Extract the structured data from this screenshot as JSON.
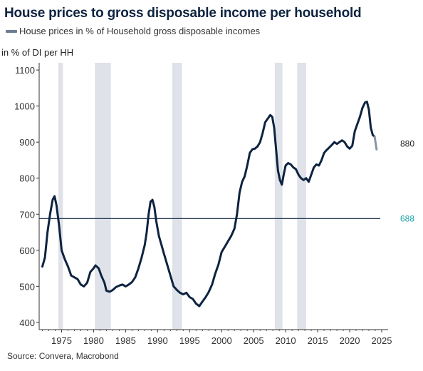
{
  "title": "House prices to gross disposable income per household",
  "legend": {
    "label": "House prices in % of Household gross disposable incomes"
  },
  "source": "Source: Convera, Macrobond",
  "colors": {
    "line": "#0d2340",
    "tail": "#8795a6",
    "recession": "#dfe2e8",
    "reference": "#0d2340",
    "reference_label": "#1aa3a6",
    "last_label": "#222222"
  },
  "chart_data": {
    "type": "line",
    "title": "House prices to gross disposable income per household",
    "ylabel": "in % of DI per HH",
    "xlabel": "",
    "xlim": [
      1971.5,
      2026
    ],
    "ylim": [
      380,
      1120
    ],
    "x_ticks": [
      1975,
      1980,
      1985,
      1990,
      1995,
      2000,
      2005,
      2010,
      2015,
      2020,
      2025
    ],
    "y_ticks": [
      400,
      500,
      600,
      700,
      800,
      900,
      1000,
      1100
    ],
    "grid": false,
    "legend_position": "top-left",
    "recessions": [
      [
        1974.5,
        1975.2
      ],
      [
        1980.2,
        1982.7
      ],
      [
        1992.3,
        1993.8
      ],
      [
        2008.3,
        2009.5
      ],
      [
        2011.8,
        2013.2
      ]
    ],
    "reference_line": {
      "value": 688,
      "label": "688"
    },
    "last_value_label": "880",
    "series": [
      {
        "name": "House prices in % of Household gross disposable incomes",
        "points": [
          [
            1972.0,
            555
          ],
          [
            1972.4,
            580
          ],
          [
            1972.8,
            650
          ],
          [
            1973.2,
            700
          ],
          [
            1973.6,
            740
          ],
          [
            1973.9,
            750
          ],
          [
            1974.2,
            725
          ],
          [
            1974.6,
            670
          ],
          [
            1975.0,
            600
          ],
          [
            1975.5,
            575
          ],
          [
            1976.0,
            555
          ],
          [
            1976.5,
            530
          ],
          [
            1977.0,
            525
          ],
          [
            1977.5,
            520
          ],
          [
            1978.0,
            505
          ],
          [
            1978.5,
            500
          ],
          [
            1979.0,
            510
          ],
          [
            1979.5,
            540
          ],
          [
            1980.0,
            550
          ],
          [
            1980.3,
            558
          ],
          [
            1980.8,
            550
          ],
          [
            1981.2,
            530
          ],
          [
            1981.7,
            510
          ],
          [
            1982.0,
            488
          ],
          [
            1982.5,
            485
          ],
          [
            1983.0,
            490
          ],
          [
            1983.5,
            498
          ],
          [
            1984.0,
            502
          ],
          [
            1984.5,
            505
          ],
          [
            1985.0,
            500
          ],
          [
            1985.5,
            505
          ],
          [
            1986.0,
            512
          ],
          [
            1986.5,
            525
          ],
          [
            1987.0,
            550
          ],
          [
            1987.5,
            580
          ],
          [
            1988.0,
            615
          ],
          [
            1988.3,
            650
          ],
          [
            1988.6,
            700
          ],
          [
            1988.9,
            735
          ],
          [
            1989.2,
            740
          ],
          [
            1989.5,
            720
          ],
          [
            1989.8,
            680
          ],
          [
            1990.2,
            640
          ],
          [
            1990.6,
            615
          ],
          [
            1991.0,
            590
          ],
          [
            1991.5,
            560
          ],
          [
            1992.0,
            530
          ],
          [
            1992.5,
            500
          ],
          [
            1993.0,
            490
          ],
          [
            1993.5,
            482
          ],
          [
            1994.0,
            478
          ],
          [
            1994.5,
            482
          ],
          [
            1995.0,
            470
          ],
          [
            1995.5,
            465
          ],
          [
            1996.0,
            452
          ],
          [
            1996.5,
            445
          ],
          [
            1997.0,
            458
          ],
          [
            1997.5,
            470
          ],
          [
            1998.0,
            485
          ],
          [
            1998.5,
            505
          ],
          [
            1999.0,
            535
          ],
          [
            1999.5,
            560
          ],
          [
            2000.0,
            595
          ],
          [
            2000.5,
            610
          ],
          [
            2001.0,
            625
          ],
          [
            2001.5,
            640
          ],
          [
            2002.0,
            660
          ],
          [
            2002.4,
            700
          ],
          [
            2002.8,
            760
          ],
          [
            2003.2,
            790
          ],
          [
            2003.6,
            805
          ],
          [
            2004.0,
            835
          ],
          [
            2004.4,
            870
          ],
          [
            2004.8,
            880
          ],
          [
            2005.2,
            882
          ],
          [
            2005.6,
            888
          ],
          [
            2006.0,
            900
          ],
          [
            2006.4,
            925
          ],
          [
            2006.8,
            955
          ],
          [
            2007.2,
            965
          ],
          [
            2007.6,
            975
          ],
          [
            2007.9,
            970
          ],
          [
            2008.2,
            940
          ],
          [
            2008.5,
            880
          ],
          [
            2008.8,
            820
          ],
          [
            2009.1,
            795
          ],
          [
            2009.4,
            782
          ],
          [
            2009.7,
            810
          ],
          [
            2010.0,
            835
          ],
          [
            2010.4,
            842
          ],
          [
            2010.8,
            838
          ],
          [
            2011.2,
            830
          ],
          [
            2011.6,
            825
          ],
          [
            2012.0,
            810
          ],
          [
            2012.4,
            800
          ],
          [
            2012.8,
            795
          ],
          [
            2013.2,
            800
          ],
          [
            2013.6,
            790
          ],
          [
            2014.0,
            810
          ],
          [
            2014.4,
            830
          ],
          [
            2014.8,
            838
          ],
          [
            2015.2,
            835
          ],
          [
            2015.6,
            850
          ],
          [
            2016.0,
            870
          ],
          [
            2016.4,
            878
          ],
          [
            2016.8,
            885
          ],
          [
            2017.2,
            892
          ],
          [
            2017.6,
            900
          ],
          [
            2018.0,
            895
          ],
          [
            2018.4,
            900
          ],
          [
            2018.8,
            905
          ],
          [
            2019.2,
            900
          ],
          [
            2019.6,
            888
          ],
          [
            2020.0,
            882
          ],
          [
            2020.4,
            890
          ],
          [
            2020.8,
            930
          ],
          [
            2021.2,
            950
          ],
          [
            2021.6,
            970
          ],
          [
            2022.0,
            995
          ],
          [
            2022.4,
            1010
          ],
          [
            2022.7,
            1012
          ],
          [
            2023.0,
            990
          ],
          [
            2023.3,
            940
          ],
          [
            2023.6,
            920
          ],
          [
            2023.9,
            915
          ]
        ],
        "tail_points": [
          [
            2023.9,
            915
          ],
          [
            2024.2,
            880
          ]
        ]
      }
    ]
  }
}
